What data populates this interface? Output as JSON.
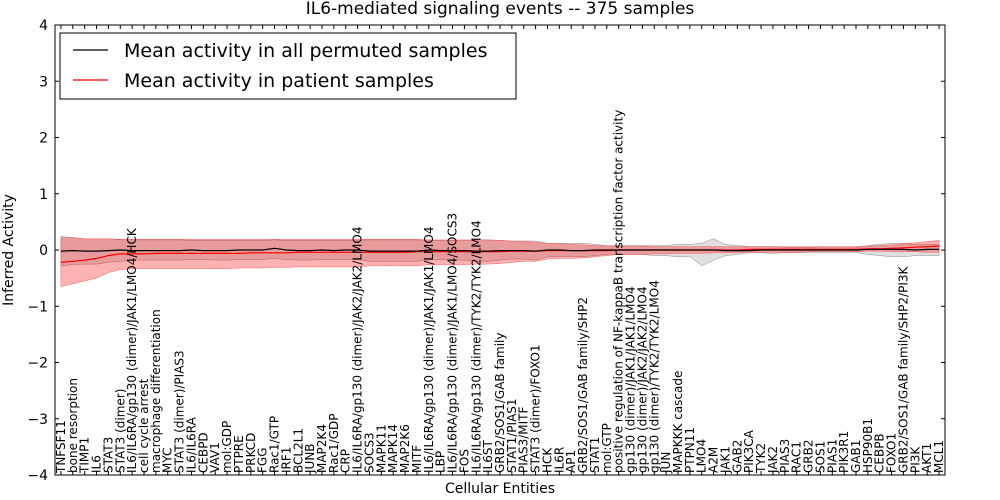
{
  "chart_data": {
    "type": "line",
    "title": "IL6-mediated signaling events -- 375 samples",
    "xlabel": "Cellular Entities",
    "ylabel": "Inferred Activity",
    "ylim": [
      -4,
      4
    ],
    "yticks": [
      "4",
      "3",
      "2",
      "1",
      "0",
      "−1",
      "−2",
      "−3",
      "−4"
    ],
    "legend": {
      "placement": "top-left",
      "entries": [
        "Mean activity in all permuted samples",
        "Mean activity in patient samples"
      ]
    },
    "categories": [
      "TNFSF11",
      "bone resorption",
      "TIMP1",
      "IL6",
      "STAT3",
      "STAT3 (dimer)",
      "IL6/IL6RA/gp130 (dimer)/JAK1/LMO4/HCK",
      "cell cycle arrest",
      "macrophage differentiation",
      "MYC",
      "STAT3 (dimer)/PIAS3",
      "IL6/IL6RA",
      "CEBPD",
      "VAV1",
      "mol:GDP",
      "PTPRE",
      "PRKCD",
      "FGG",
      "Rac1/GTP",
      "IRF1",
      "BCL2L1",
      "JUNB",
      "MAP2K4",
      "Rac1/GDP",
      "CRP",
      "IL6/IL6RA/gp130 (dimer)/JAK2/JAK2/LMO4",
      "SOCS3",
      "MAPK11",
      "MAPK14",
      "MAP2K6",
      "MITF",
      "IL6/IL6RA/gp130 (dimer)/JAK1/JAK1/LMO4",
      "LBP",
      "IL6/IL6RA/gp130 (dimer)/JAK1/LMO4/SOCS3",
      "FOS",
      "IL6/IL6RA/gp130 (dimer)/TYK2/TYK2/LMO4",
      "IL6ST",
      "GRB2/SOS1/GAB family",
      "STAT1/PIAS1",
      "PIAS3/MITF",
      "STAT3 (dimer)/FOXO1",
      "HCK",
      "IL6R",
      "AP1",
      "GRB2/SOS1/GAB family/SHP2",
      "STAT1",
      "mol:GTP",
      "positive regulation of NF-kappaB transcription factor activity",
      "gp130 (dimer)/JAK1/JAK1/LMO4",
      "gp130 (dimer)/JAK2/JAK2/LMO4",
      "gp130 (dimer)/TYK2/TYK2/LMO4",
      "JUN",
      "MAPKKK cascade",
      "PTPN11",
      "LMO4",
      "A2M",
      "JAK1",
      "GAB2",
      "PIK3CA",
      "TYK2",
      "JAK2",
      "PIAS3",
      "RAC1",
      "GRB2",
      "SOS1",
      "PIAS1",
      "PIK3R1",
      "GAB1",
      "HSP90B1",
      "CEBPB",
      "FOXO1",
      "GRB2/SOS1/GAB family/SHP2/PI3K",
      "PI3K",
      "AKT1",
      "MCL1"
    ],
    "series": [
      {
        "name": "Mean activity in all permuted samples",
        "color": "#000000",
        "values": [
          -0.02,
          -0.01,
          -0.02,
          -0.02,
          -0.01,
          0.0,
          -0.01,
          -0.01,
          -0.01,
          -0.01,
          -0.01,
          0.0,
          -0.01,
          -0.01,
          -0.01,
          0.0,
          0.0,
          0.0,
          0.03,
          0.0,
          -0.01,
          -0.01,
          0.0,
          -0.01,
          0.0,
          0.0,
          -0.02,
          -0.02,
          -0.02,
          -0.02,
          -0.02,
          0.0,
          -0.01,
          -0.01,
          -0.01,
          -0.02,
          -0.02,
          -0.01,
          -0.01,
          -0.01,
          -0.02,
          0.0,
          0.0,
          -0.01,
          -0.01,
          0.0,
          0.0,
          0.0,
          0.0,
          0.0,
          0.0,
          0.0,
          0.0,
          0.0,
          0.0,
          0.0,
          -0.01,
          -0.01,
          -0.01,
          0.0,
          0.0,
          0.0,
          0.0,
          0.0,
          0.0,
          0.0,
          0.0,
          0.0,
          0.01,
          0.01,
          0.01,
          0.01,
          0.0,
          0.01,
          0.01
        ],
        "band_low": [
          -0.28,
          -0.26,
          -0.25,
          -0.25,
          -0.22,
          -0.2,
          -0.18,
          -0.18,
          -0.18,
          -0.18,
          -0.18,
          -0.17,
          -0.17,
          -0.18,
          -0.18,
          -0.17,
          -0.17,
          -0.17,
          -0.15,
          -0.17,
          -0.18,
          -0.18,
          -0.17,
          -0.17,
          -0.17,
          -0.17,
          -0.2,
          -0.2,
          -0.2,
          -0.2,
          -0.2,
          -0.18,
          -0.17,
          -0.18,
          -0.18,
          -0.2,
          -0.2,
          -0.18,
          -0.16,
          -0.16,
          -0.18,
          -0.12,
          -0.12,
          -0.12,
          -0.12,
          -0.1,
          -0.08,
          -0.08,
          -0.08,
          -0.08,
          -0.1,
          -0.1,
          -0.12,
          -0.12,
          -0.28,
          -0.18,
          -0.1,
          -0.08,
          -0.05,
          -0.05,
          -0.06,
          -0.05,
          -0.05,
          -0.05,
          -0.04,
          -0.04,
          -0.04,
          -0.04,
          -0.08,
          -0.1,
          -0.12,
          -0.12,
          -0.1,
          -0.1,
          -0.1
        ],
        "band_high": [
          0.24,
          0.22,
          0.2,
          0.2,
          0.2,
          0.18,
          0.18,
          0.18,
          0.18,
          0.18,
          0.18,
          0.17,
          0.17,
          0.17,
          0.17,
          0.17,
          0.17,
          0.17,
          0.18,
          0.17,
          0.17,
          0.17,
          0.17,
          0.17,
          0.17,
          0.17,
          0.18,
          0.18,
          0.18,
          0.18,
          0.18,
          0.17,
          0.17,
          0.17,
          0.17,
          0.18,
          0.18,
          0.17,
          0.16,
          0.16,
          0.16,
          0.12,
          0.12,
          0.12,
          0.12,
          0.1,
          0.08,
          0.08,
          0.08,
          0.08,
          0.08,
          0.08,
          0.1,
          0.1,
          0.12,
          0.2,
          0.1,
          0.08,
          0.06,
          0.06,
          0.06,
          0.05,
          0.05,
          0.05,
          0.04,
          0.04,
          0.04,
          0.04,
          0.08,
          0.1,
          0.12,
          0.12,
          0.1,
          0.1,
          0.1
        ]
      },
      {
        "name": "Mean activity in patient samples",
        "color": "#ff0000",
        "values": [
          -0.22,
          -0.2,
          -0.18,
          -0.15,
          -0.1,
          -0.07,
          -0.07,
          -0.07,
          -0.06,
          -0.06,
          -0.06,
          -0.06,
          -0.06,
          -0.06,
          -0.06,
          -0.06,
          -0.05,
          -0.05,
          -0.05,
          -0.05,
          -0.04,
          -0.04,
          -0.04,
          -0.04,
          -0.04,
          -0.04,
          -0.04,
          -0.04,
          -0.04,
          -0.04,
          -0.03,
          -0.03,
          -0.03,
          -0.03,
          -0.03,
          -0.03,
          -0.03,
          -0.03,
          -0.02,
          -0.02,
          -0.02,
          -0.01,
          -0.01,
          -0.01,
          -0.01,
          -0.01,
          -0.01,
          0.0,
          0.0,
          0.0,
          0.0,
          0.0,
          0.0,
          0.0,
          0.0,
          0.0,
          0.0,
          0.0,
          0.01,
          0.01,
          0.01,
          0.01,
          0.01,
          0.01,
          0.01,
          0.01,
          0.01,
          0.01,
          0.02,
          0.02,
          0.03,
          0.04,
          0.05,
          0.06,
          0.07
        ],
        "band_low": [
          -0.65,
          -0.6,
          -0.55,
          -0.5,
          -0.4,
          -0.35,
          -0.33,
          -0.33,
          -0.33,
          -0.33,
          -0.33,
          -0.33,
          -0.33,
          -0.33,
          -0.33,
          -0.32,
          -0.32,
          -0.32,
          -0.31,
          -0.31,
          -0.3,
          -0.3,
          -0.3,
          -0.3,
          -0.3,
          -0.3,
          -0.28,
          -0.28,
          -0.28,
          -0.28,
          -0.28,
          -0.26,
          -0.26,
          -0.26,
          -0.26,
          -0.25,
          -0.25,
          -0.24,
          -0.22,
          -0.2,
          -0.2,
          -0.16,
          -0.15,
          -0.15,
          -0.14,
          -0.12,
          -0.1,
          -0.08,
          -0.08,
          -0.08,
          -0.07,
          -0.07,
          -0.06,
          -0.06,
          -0.06,
          -0.05,
          -0.05,
          -0.05,
          -0.04,
          -0.04,
          -0.04,
          -0.04,
          -0.04,
          -0.03,
          -0.03,
          -0.03,
          -0.03,
          -0.03,
          -0.02,
          -0.02,
          -0.03,
          -0.03,
          -0.03,
          -0.04,
          -0.04
        ],
        "band_high": [
          0.22,
          0.22,
          0.2,
          0.2,
          0.2,
          0.19,
          0.19,
          0.19,
          0.19,
          0.19,
          0.19,
          0.19,
          0.19,
          0.19,
          0.19,
          0.19,
          0.19,
          0.19,
          0.19,
          0.19,
          0.19,
          0.19,
          0.19,
          0.19,
          0.19,
          0.19,
          0.19,
          0.19,
          0.19,
          0.19,
          0.19,
          0.18,
          0.18,
          0.18,
          0.18,
          0.18,
          0.18,
          0.17,
          0.16,
          0.15,
          0.14,
          0.12,
          0.11,
          0.1,
          0.09,
          0.08,
          0.07,
          0.07,
          0.07,
          0.07,
          0.06,
          0.06,
          0.06,
          0.06,
          0.06,
          0.06,
          0.06,
          0.06,
          0.06,
          0.06,
          0.06,
          0.06,
          0.06,
          0.06,
          0.06,
          0.06,
          0.06,
          0.06,
          0.07,
          0.08,
          0.09,
          0.11,
          0.13,
          0.15,
          0.17
        ]
      }
    ]
  }
}
